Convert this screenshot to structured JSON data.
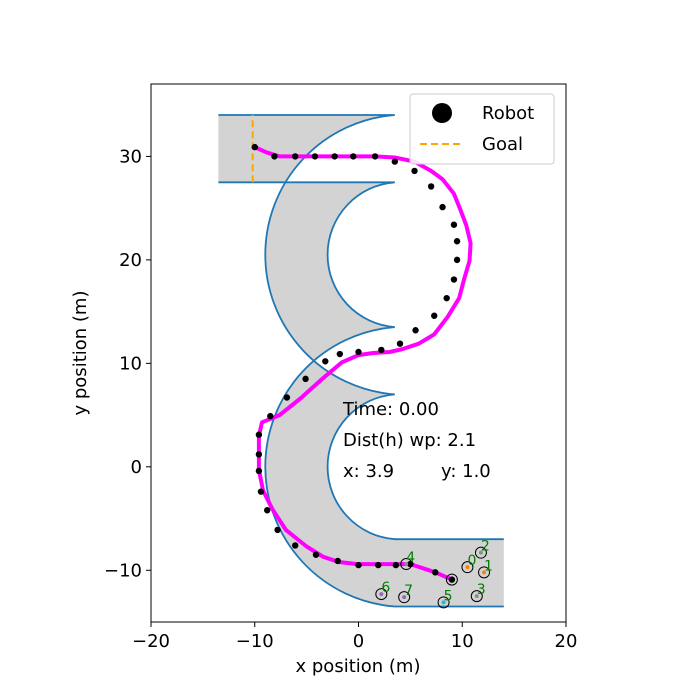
{
  "chart_data": {
    "type": "scatter",
    "xlabel": "x position (m)",
    "ylabel": "y position (m)",
    "xlim": [
      -20,
      20
    ],
    "ylim": [
      -15,
      37
    ],
    "x_ticks": [
      -20,
      -10,
      0,
      10,
      20
    ],
    "y_ticks": [
      -10,
      0,
      10,
      20,
      30
    ],
    "x_tick_labels": [
      "−20",
      "−10",
      "0",
      "10",
      "20"
    ],
    "y_tick_labels": [
      "−10",
      "0",
      "10",
      "20",
      "30"
    ],
    "grid": false,
    "legend_position": "upper-right",
    "legend": [
      {
        "label": "Robot",
        "marker": "circle",
        "color": "#000000"
      },
      {
        "label": "Goal",
        "marker": "dashed-line",
        "color": "#ffa500"
      }
    ],
    "track": {
      "width": 6.5,
      "fill_color": "#d3d3d3",
      "edge_color": "#1f77b4",
      "centerline": {
        "lower_straight": {
          "from": [
            14,
            -10.25
          ],
          "to": [
            3.5,
            -10.25
          ]
        },
        "lower_arc": {
          "center": [
            3.5,
            0
          ],
          "radius": 10.25,
          "start_deg": 270,
          "end_deg": 90,
          "direction": "clockwise"
        },
        "middle_straight": {
          "from": [
            3.5,
            10.25
          ],
          "to": [
            3.5,
            10.25
          ]
        },
        "upper_arc": {
          "center": [
            3.5,
            20.5
          ],
          "radius": 10.25,
          "start_deg": 270,
          "end_deg": 450,
          "direction": "counterclockwise"
        },
        "upper_straight": {
          "from": [
            3.5,
            30.75
          ],
          "to": [
            -13.5,
            30.75
          ]
        }
      }
    },
    "goal_line": {
      "x": -10.2,
      "y_range": [
        27.5,
        34.0
      ],
      "color": "#ffa500"
    },
    "path_color": "#ff00ff",
    "path": [
      [
        9.0,
        -10.9
      ],
      [
        7.4,
        -10.2
      ],
      [
        5.0,
        -9.4
      ],
      [
        2.4,
        -9.4
      ],
      [
        -0.1,
        -9.4
      ],
      [
        -1.9,
        -9.2
      ],
      [
        -3.4,
        -8.7
      ],
      [
        -5.0,
        -7.7
      ],
      [
        -7.0,
        -6.1
      ],
      [
        -8.3,
        -4.1
      ],
      [
        -9.2,
        -2.3
      ],
      [
        -9.6,
        -0.3
      ],
      [
        -9.6,
        1.3
      ],
      [
        -9.6,
        3.0
      ],
      [
        -9.3,
        4.3
      ],
      [
        -7.6,
        5.0
      ],
      [
        -5.6,
        6.6
      ],
      [
        -3.5,
        8.5
      ],
      [
        -1.6,
        10.1
      ],
      [
        0.0,
        10.8
      ],
      [
        1.4,
        11.0
      ],
      [
        3.0,
        11.1
      ],
      [
        4.3,
        11.4
      ],
      [
        5.8,
        11.9
      ],
      [
        7.3,
        12.8
      ],
      [
        8.6,
        14.5
      ],
      [
        9.7,
        16.3
      ],
      [
        10.2,
        18.2
      ],
      [
        10.7,
        19.9
      ],
      [
        10.8,
        21.6
      ],
      [
        10.4,
        23.3
      ],
      [
        9.8,
        24.9
      ],
      [
        9.2,
        26.4
      ],
      [
        8.1,
        27.8
      ],
      [
        7.0,
        28.6
      ],
      [
        5.4,
        29.5
      ],
      [
        3.5,
        29.9
      ],
      [
        1.6,
        30.0
      ],
      [
        -0.6,
        30.0
      ],
      [
        -2.6,
        30.0
      ],
      [
        -4.3,
        30.0
      ],
      [
        -6.0,
        30.0
      ],
      [
        -7.6,
        30.0
      ],
      [
        -8.9,
        30.4
      ],
      [
        -10.0,
        30.9
      ]
    ],
    "waypoints": [
      [
        -10.0,
        30.9
      ],
      [
        -8.1,
        30.0
      ],
      [
        -6.1,
        30.0
      ],
      [
        -4.2,
        30.0
      ],
      [
        -2.3,
        30.0
      ],
      [
        -0.5,
        30.0
      ],
      [
        1.6,
        30.0
      ],
      [
        3.5,
        29.5
      ],
      [
        5.4,
        28.6
      ],
      [
        7.0,
        27.1
      ],
      [
        8.1,
        25.1
      ],
      [
        9.2,
        23.4
      ],
      [
        9.5,
        21.8
      ],
      [
        9.5,
        20.0
      ],
      [
        9.2,
        18.1
      ],
      [
        8.5,
        16.3
      ],
      [
        7.3,
        14.6
      ],
      [
        5.5,
        13.2
      ],
      [
        4.0,
        11.9
      ],
      [
        2.2,
        11.3
      ],
      [
        0.0,
        11.1
      ],
      [
        -1.8,
        10.9
      ],
      [
        -3.2,
        10.2
      ],
      [
        -5.1,
        8.5
      ],
      [
        -6.9,
        6.7
      ],
      [
        -8.5,
        4.9
      ],
      [
        -9.6,
        3.1
      ],
      [
        -9.6,
        1.2
      ],
      [
        -9.6,
        -0.4
      ],
      [
        -9.4,
        -2.4
      ],
      [
        -8.8,
        -4.2
      ],
      [
        -7.8,
        -6.1
      ],
      [
        -6.1,
        -7.6
      ],
      [
        -4.1,
        -8.5
      ],
      [
        -2.0,
        -9.1
      ],
      [
        0.0,
        -9.5
      ],
      [
        1.9,
        -9.5
      ],
      [
        3.6,
        -9.5
      ],
      [
        5.0,
        -9.4
      ],
      [
        7.4,
        -10.2
      ],
      [
        9.0,
        -10.9
      ]
    ],
    "robots": [
      {
        "label": "0",
        "x": 10.5,
        "y": -9.7,
        "dot": "#ff7f0e"
      },
      {
        "label": "1",
        "x": 12.1,
        "y": -10.2,
        "dot": "#ff7f0e"
      },
      {
        "label": "2",
        "x": 11.8,
        "y": -8.3,
        "dot": "#8c8c8c"
      },
      {
        "label": "3",
        "x": 11.4,
        "y": -12.5,
        "dot": "#8c8c8c"
      },
      {
        "label": "4",
        "x": 4.6,
        "y": -9.4,
        "dot": "#8c8c8c"
      },
      {
        "label": "5",
        "x": 8.2,
        "y": -13.1,
        "dot": "#17becf"
      },
      {
        "label": "6",
        "x": 2.2,
        "y": -12.3,
        "dot": "#9467bd"
      },
      {
        "label": "7",
        "x": 4.4,
        "y": -12.6,
        "dot": "#9467bd"
      }
    ],
    "ego_robot": {
      "x": 9.0,
      "y": -10.9
    }
  },
  "annotations": {
    "time": "Time: 0.00",
    "dist": "Dist(h) wp: 2.1",
    "pos_x": "x: 3.9",
    "pos_y": "y: 1.0"
  }
}
